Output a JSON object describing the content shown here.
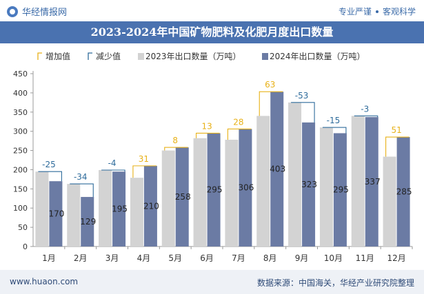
{
  "header": {
    "brand": "华经情报网",
    "slogan_left": "专业严谨",
    "slogan_right": "客观科学"
  },
  "footer": {
    "url": "www.huaon.com",
    "source": "数据来源：中国海关，华经产业研究院整理"
  },
  "colors": {
    "title_bg": "#4a72b0",
    "bar_2023": "#d3d3d3",
    "bar_2024": "#6b7ba4",
    "increase": "#e8b117",
    "decrease": "#2e6b9b"
  },
  "chart_data": {
    "type": "bar",
    "title": "2023-2024年中国矿物肥料及化肥月度出口数量",
    "categories": [
      "1月",
      "2月",
      "3月",
      "4月",
      "5月",
      "6月",
      "7月",
      "8月",
      "9月",
      "10月",
      "11月",
      "12月"
    ],
    "series": [
      {
        "name": "2023年出口数量（万吨）",
        "values": [
          195,
          163,
          199,
          179,
          250,
          282,
          278,
          340,
          375,
          310,
          340,
          234
        ]
      },
      {
        "name": "2024年出口数量（万吨）",
        "values": [
          170,
          129,
          195,
          210,
          258,
          295,
          306,
          403,
          323,
          295,
          337,
          285
        ]
      }
    ],
    "differences": [
      -25,
      -34,
      -4,
      31,
      8,
      13,
      28,
      63,
      -53,
      -15,
      -3,
      51
    ],
    "legend": [
      "增加值",
      "减少值",
      "2023年出口数量（万吨）",
      "2024年出口数量（万吨）"
    ],
    "yticks": [
      0,
      50,
      100,
      150,
      200,
      250,
      300,
      350,
      400,
      450
    ],
    "ylim": [
      0,
      450
    ],
    "legend_position": "top",
    "grid": false
  }
}
